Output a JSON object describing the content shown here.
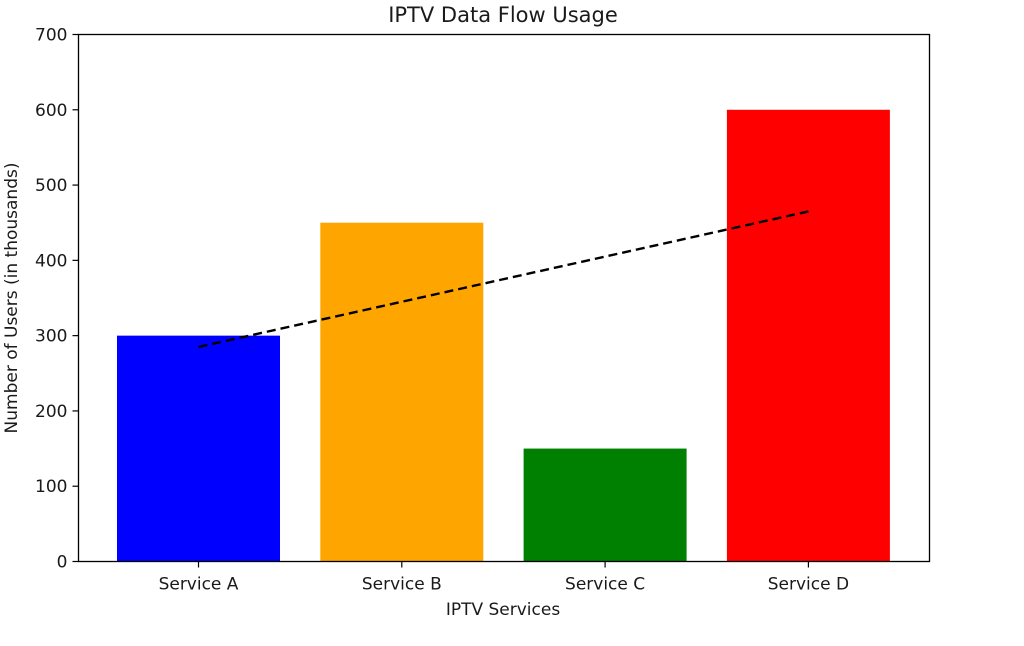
{
  "chart_data": {
    "type": "bar",
    "title": "IPTV Data Flow Usage",
    "xlabel": "IPTV Services",
    "ylabel": "Number of Users (in thousands)",
    "categories": [
      "Service A",
      "Service B",
      "Service C",
      "Service D"
    ],
    "values": [
      300,
      450,
      150,
      600
    ],
    "bar_colors": [
      "#0000ff",
      "#ffa500",
      "#008000",
      "#ff0000"
    ],
    "ylim": [
      0,
      700
    ],
    "yticks": [
      0,
      100,
      200,
      300,
      400,
      500,
      600,
      700
    ],
    "trend_line": {
      "style": "dashed",
      "color": "#000000",
      "x": [
        "Service A",
        "Service D"
      ],
      "y": [
        285,
        465
      ]
    },
    "grid": false,
    "legend": "none"
  }
}
